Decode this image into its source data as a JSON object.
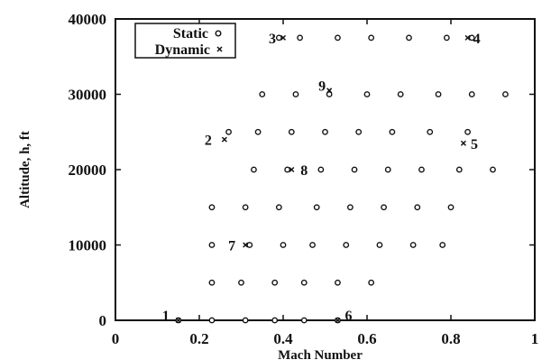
{
  "chart_data": {
    "type": "scatter",
    "xlabel": "Mach Number",
    "ylabel": "Altitude, h, ft",
    "xlim": [
      0,
      1
    ],
    "ylim": [
      0,
      40000
    ],
    "x_ticks": [
      0,
      0.2,
      0.4,
      0.6,
      0.8,
      1
    ],
    "x_tick_labels": [
      "0",
      "0.2",
      "0.4",
      "0.6",
      "0.8",
      "1"
    ],
    "y_ticks": [
      0,
      10000,
      20000,
      30000,
      40000
    ],
    "y_tick_labels": [
      "0",
      "10000",
      "20000",
      "30000",
      "40000"
    ],
    "legend_position": "top-left",
    "series": [
      {
        "name": "Static",
        "marker": "open-circle",
        "points": [
          [
            0.15,
            0
          ],
          [
            0.23,
            0
          ],
          [
            0.31,
            0
          ],
          [
            0.38,
            0
          ],
          [
            0.45,
            0
          ],
          [
            0.53,
            0
          ],
          [
            0.23,
            5000
          ],
          [
            0.3,
            5000
          ],
          [
            0.38,
            5000
          ],
          [
            0.45,
            5000
          ],
          [
            0.53,
            5000
          ],
          [
            0.61,
            5000
          ],
          [
            0.23,
            10000
          ],
          [
            0.32,
            10000
          ],
          [
            0.4,
            10000
          ],
          [
            0.47,
            10000
          ],
          [
            0.55,
            10000
          ],
          [
            0.63,
            10000
          ],
          [
            0.71,
            10000
          ],
          [
            0.78,
            10000
          ],
          [
            0.23,
            15000
          ],
          [
            0.31,
            15000
          ],
          [
            0.39,
            15000
          ],
          [
            0.48,
            15000
          ],
          [
            0.56,
            15000
          ],
          [
            0.64,
            15000
          ],
          [
            0.72,
            15000
          ],
          [
            0.8,
            15000
          ],
          [
            0.33,
            20000
          ],
          [
            0.41,
            20000
          ],
          [
            0.49,
            20000
          ],
          [
            0.57,
            20000
          ],
          [
            0.65,
            20000
          ],
          [
            0.73,
            20000
          ],
          [
            0.82,
            20000
          ],
          [
            0.9,
            20000
          ],
          [
            0.27,
            25000
          ],
          [
            0.34,
            25000
          ],
          [
            0.42,
            25000
          ],
          [
            0.5,
            25000
          ],
          [
            0.58,
            25000
          ],
          [
            0.66,
            25000
          ],
          [
            0.75,
            25000
          ],
          [
            0.84,
            25000
          ],
          [
            0.35,
            30000
          ],
          [
            0.43,
            30000
          ],
          [
            0.51,
            30000
          ],
          [
            0.6,
            30000
          ],
          [
            0.68,
            30000
          ],
          [
            0.77,
            30000
          ],
          [
            0.85,
            30000
          ],
          [
            0.93,
            30000
          ],
          [
            0.39,
            37500
          ],
          [
            0.44,
            37500
          ],
          [
            0.53,
            37500
          ],
          [
            0.61,
            37500
          ],
          [
            0.7,
            37500
          ],
          [
            0.79,
            37500
          ],
          [
            0.85,
            37500
          ]
        ]
      },
      {
        "name": "Dynamic",
        "marker": "x",
        "points": [
          [
            0.15,
            0
          ],
          [
            0.26,
            24000
          ],
          [
            0.31,
            10000
          ],
          [
            0.4,
            37500
          ],
          [
            0.42,
            20000
          ],
          [
            0.51,
            30500
          ],
          [
            0.53,
            0
          ],
          [
            0.84,
            37500
          ],
          [
            0.83,
            23500
          ]
        ]
      }
    ],
    "point_labels": [
      {
        "text": "1",
        "x": 0.15,
        "y": 0
      },
      {
        "text": "2",
        "x": 0.26,
        "y": 24000
      },
      {
        "text": "3",
        "x": 0.4,
        "y": 37500
      },
      {
        "text": "4",
        "x": 0.84,
        "y": 37500
      },
      {
        "text": "5",
        "x": 0.83,
        "y": 23500
      },
      {
        "text": "6",
        "x": 0.53,
        "y": 0
      },
      {
        "text": "7",
        "x": 0.31,
        "y": 10000
      },
      {
        "text": "8",
        "x": 0.42,
        "y": 20000
      },
      {
        "text": "9",
        "x": 0.51,
        "y": 30500
      }
    ]
  }
}
